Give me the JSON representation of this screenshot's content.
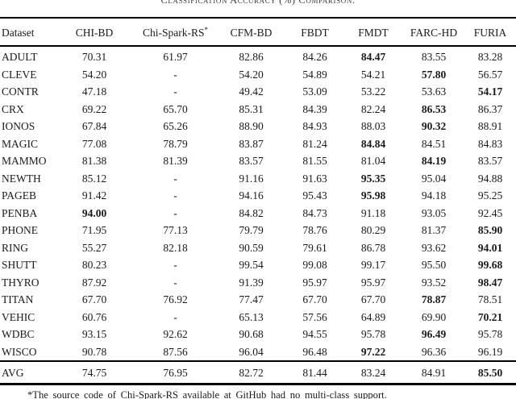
{
  "caption": "Classification Accuracy (%) Comparison.",
  "table": {
    "columns": [
      "Dataset",
      "CHI-BD",
      "Chi-Spark-RS*",
      "CFM-BD",
      "FBDT",
      "FMDT",
      "FARC-HD",
      "FURIA"
    ],
    "rows": [
      {
        "dataset": "ADULT",
        "values": [
          "70.31",
          "61.97",
          "82.86",
          "84.26",
          "84.47",
          "83.55",
          "83.28"
        ],
        "bold": 4
      },
      {
        "dataset": "CLEVE",
        "values": [
          "54.20",
          "-",
          "54.20",
          "54.89",
          "54.21",
          "57.80",
          "56.57"
        ],
        "bold": 5
      },
      {
        "dataset": "CONTR",
        "values": [
          "47.18",
          "-",
          "49.42",
          "53.09",
          "53.22",
          "53.63",
          "54.17"
        ],
        "bold": 6
      },
      {
        "dataset": "CRX",
        "values": [
          "69.22",
          "65.70",
          "85.31",
          "84.39",
          "82.24",
          "86.53",
          "86.37"
        ],
        "bold": 5
      },
      {
        "dataset": "IONOS",
        "values": [
          "67.84",
          "65.26",
          "88.90",
          "84.93",
          "88.03",
          "90.32",
          "88.91"
        ],
        "bold": 5
      },
      {
        "dataset": "MAGIC",
        "values": [
          "77.08",
          "78.79",
          "83.87",
          "81.24",
          "84.84",
          "84.51",
          "84.83"
        ],
        "bold": 4
      },
      {
        "dataset": "MAMMO",
        "values": [
          "81.38",
          "81.39",
          "83.57",
          "81.55",
          "81.04",
          "84.19",
          "83.57"
        ],
        "bold": 5
      },
      {
        "dataset": "NEWTH",
        "values": [
          "85.12",
          "-",
          "91.16",
          "91.63",
          "95.35",
          "95.04",
          "94.88"
        ],
        "bold": 4
      },
      {
        "dataset": "PAGEB",
        "values": [
          "91.42",
          "-",
          "94.16",
          "95.43",
          "95.98",
          "94.18",
          "95.25"
        ],
        "bold": 4
      },
      {
        "dataset": "PENBA",
        "values": [
          "94.00",
          "-",
          "84.82",
          "84.73",
          "91.18",
          "93.05",
          "92.45"
        ],
        "bold": 0
      },
      {
        "dataset": "PHONE",
        "values": [
          "71.95",
          "77.13",
          "79.79",
          "78.76",
          "80.29",
          "81.37",
          "85.90"
        ],
        "bold": 6
      },
      {
        "dataset": "RING",
        "values": [
          "55.27",
          "82.18",
          "90.59",
          "79.61",
          "86.78",
          "93.62",
          "94.01"
        ],
        "bold": 6
      },
      {
        "dataset": "SHUTT",
        "values": [
          "80.23",
          "-",
          "99.54",
          "99.08",
          "99.17",
          "95.50",
          "99.68"
        ],
        "bold": 6
      },
      {
        "dataset": "THYRO",
        "values": [
          "87.92",
          "-",
          "91.39",
          "95.97",
          "95.97",
          "93.52",
          "98.47"
        ],
        "bold": 6
      },
      {
        "dataset": "TITAN",
        "values": [
          "67.70",
          "76.92",
          "77.47",
          "67.70",
          "67.70",
          "78.87",
          "78.51"
        ],
        "bold": 5
      },
      {
        "dataset": "VEHIC",
        "values": [
          "60.76",
          "-",
          "65.13",
          "57.56",
          "64.89",
          "69.90",
          "70.21"
        ],
        "bold": 6
      },
      {
        "dataset": "WDBC",
        "values": [
          "93.15",
          "92.62",
          "90.68",
          "94.55",
          "95.78",
          "96.49",
          "95.78"
        ],
        "bold": 5
      },
      {
        "dataset": "WISCO",
        "values": [
          "90.78",
          "87.56",
          "96.04",
          "96.48",
          "97.22",
          "96.36",
          "96.19"
        ],
        "bold": 4
      }
    ],
    "avg_row": {
      "dataset": "AVG",
      "values": [
        "74.75",
        "76.95",
        "82.72",
        "81.44",
        "83.24",
        "84.91",
        "85.50"
      ],
      "bold": 6
    }
  },
  "footnote": "*The source code of Chi-Spark-RS available at GitHub had no multi-class support."
}
